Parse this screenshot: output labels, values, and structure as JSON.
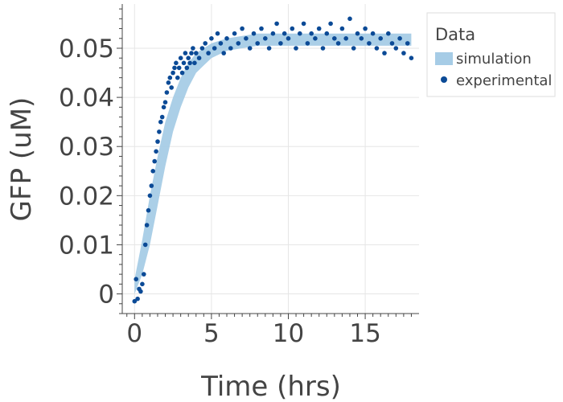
{
  "chart_data": {
    "type": "line",
    "title": "",
    "xlabel": "Time (hrs)",
    "ylabel": "GFP (uM)",
    "xlim": [
      -0.8,
      18.5
    ],
    "ylim": [
      -0.004,
      0.059
    ],
    "xticks": [
      0,
      5,
      10,
      15
    ],
    "yticks": [
      0,
      0.01,
      0.02,
      0.03,
      0.04,
      0.05
    ],
    "ytick_labels": [
      "0",
      "0.01",
      "0.02",
      "0.03",
      "0.04",
      "0.05"
    ],
    "grid": true,
    "legend": {
      "title": "Data",
      "position": "right",
      "entries": [
        "simulation",
        "experimental"
      ]
    },
    "series": [
      {
        "name": "simulation",
        "kind": "band",
        "color": "#a6cce6",
        "x": [
          0,
          0.5,
          1,
          1.5,
          2,
          2.5,
          3,
          3.5,
          4,
          5,
          6,
          7,
          8,
          10,
          12,
          14,
          16,
          18
        ],
        "lower": [
          0.0,
          0.004,
          0.01,
          0.018,
          0.026,
          0.033,
          0.038,
          0.042,
          0.045,
          0.048,
          0.0495,
          0.05,
          0.0505,
          0.0505,
          0.0505,
          0.0505,
          0.0505,
          0.0505
        ],
        "upper": [
          0.003,
          0.011,
          0.02,
          0.028,
          0.035,
          0.04,
          0.044,
          0.047,
          0.049,
          0.051,
          0.052,
          0.0525,
          0.053,
          0.053,
          0.053,
          0.053,
          0.053,
          0.053
        ]
      },
      {
        "name": "experimental",
        "kind": "scatter",
        "color": "#0b4a96",
        "x": [
          0.0,
          0.1,
          0.2,
          0.3,
          0.4,
          0.5,
          0.6,
          0.7,
          0.8,
          0.9,
          1.0,
          1.1,
          1.2,
          1.3,
          1.4,
          1.5,
          1.6,
          1.7,
          1.8,
          1.9,
          2.0,
          2.1,
          2.2,
          2.3,
          2.4,
          2.5,
          2.6,
          2.7,
          2.8,
          2.9,
          3.0,
          3.1,
          3.2,
          3.3,
          3.4,
          3.5,
          3.6,
          3.7,
          3.8,
          3.9,
          4.0,
          4.2,
          4.4,
          4.6,
          4.8,
          5.0,
          5.2,
          5.4,
          5.6,
          5.8,
          6.0,
          6.25,
          6.5,
          6.75,
          7.0,
          7.25,
          7.5,
          7.75,
          8.0,
          8.25,
          8.5,
          8.75,
          9.0,
          9.25,
          9.5,
          9.75,
          10.0,
          10.25,
          10.5,
          10.75,
          11.0,
          11.25,
          11.5,
          11.75,
          12.0,
          12.25,
          12.5,
          12.75,
          13.0,
          13.25,
          13.5,
          13.75,
          14.0,
          14.25,
          14.5,
          14.75,
          15.0,
          15.25,
          15.5,
          15.75,
          16.0,
          16.25,
          16.5,
          16.75,
          17.0,
          17.25,
          17.5,
          17.75,
          18.0
        ],
        "y": [
          -0.0015,
          0.003,
          -0.001,
          0.001,
          0.0005,
          0.002,
          0.004,
          0.01,
          0.014,
          0.017,
          0.02,
          0.022,
          0.025,
          0.027,
          0.029,
          0.031,
          0.033,
          0.035,
          0.036,
          0.038,
          0.039,
          0.041,
          0.043,
          0.044,
          0.042,
          0.045,
          0.046,
          0.047,
          0.044,
          0.046,
          0.048,
          0.045,
          0.047,
          0.049,
          0.046,
          0.048,
          0.047,
          0.049,
          0.05,
          0.047,
          0.049,
          0.048,
          0.05,
          0.051,
          0.049,
          0.052,
          0.05,
          0.053,
          0.051,
          0.049,
          0.052,
          0.05,
          0.053,
          0.051,
          0.054,
          0.052,
          0.05,
          0.053,
          0.051,
          0.054,
          0.052,
          0.05,
          0.053,
          0.055,
          0.051,
          0.053,
          0.052,
          0.054,
          0.05,
          0.053,
          0.055,
          0.051,
          0.053,
          0.052,
          0.054,
          0.05,
          0.053,
          0.055,
          0.052,
          0.051,
          0.054,
          0.052,
          0.056,
          0.05,
          0.053,
          0.052,
          0.054,
          0.051,
          0.053,
          0.05,
          0.052,
          0.049,
          0.053,
          0.051,
          0.05,
          0.052,
          0.049,
          0.051,
          0.048
        ]
      }
    ]
  }
}
